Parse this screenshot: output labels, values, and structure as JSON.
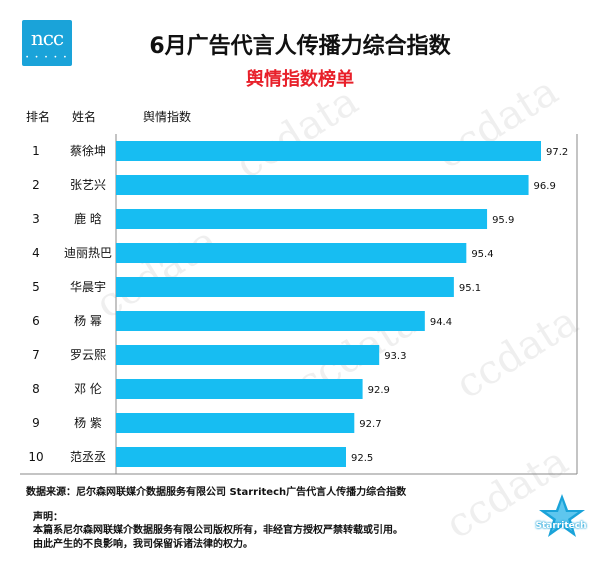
{
  "logo": {
    "text": "ncc"
  },
  "title": "6月广告代言人传播力综合指数",
  "subtitle": "舆情指数榜单",
  "headers": {
    "rank": "排名",
    "name": "姓名",
    "index": "舆情指数"
  },
  "watermark": "ccdata",
  "chart_data": {
    "type": "bar",
    "orientation": "horizontal",
    "categories": [
      "蔡徐坤",
      "张艺兴",
      "鹿  晗",
      "迪丽热巴",
      "华晨宇",
      "杨  幂",
      "罗云熙",
      "邓  伦",
      "杨  紫",
      "范丞丞"
    ],
    "ranks": [
      "1",
      "2",
      "3",
      "4",
      "5",
      "6",
      "7",
      "8",
      "9",
      "10"
    ],
    "values": [
      97.2,
      96.9,
      95.9,
      95.4,
      95.1,
      94.4,
      93.3,
      92.9,
      92.7,
      92.5
    ],
    "value_labels": [
      "97.2",
      "96.9",
      "95.9",
      "95.4",
      "95.1",
      "94.4",
      "93.3",
      "92.9",
      "92.7",
      "92.5"
    ],
    "bar_color": "#17bdf2",
    "xlim": [
      90,
      97.2
    ],
    "grid": false
  },
  "source": "数据来源：尼尔森网联媒介数据服务有限公司 Starritech广告代言人传播力综合指数",
  "declaration": {
    "title": "声明：",
    "line1": "本篇系尼尔森网联媒介数据服务有限公司版权所有，非经官方授权严禁转载或引用。",
    "line2": "由此产生的不良影响，我司保留诉诸法律的权力。"
  },
  "brand": {
    "label": "Starritech"
  },
  "colors": {
    "accent": "#1aa3d9",
    "subtitle": "#e8202a",
    "bar": "#17bdf2"
  }
}
